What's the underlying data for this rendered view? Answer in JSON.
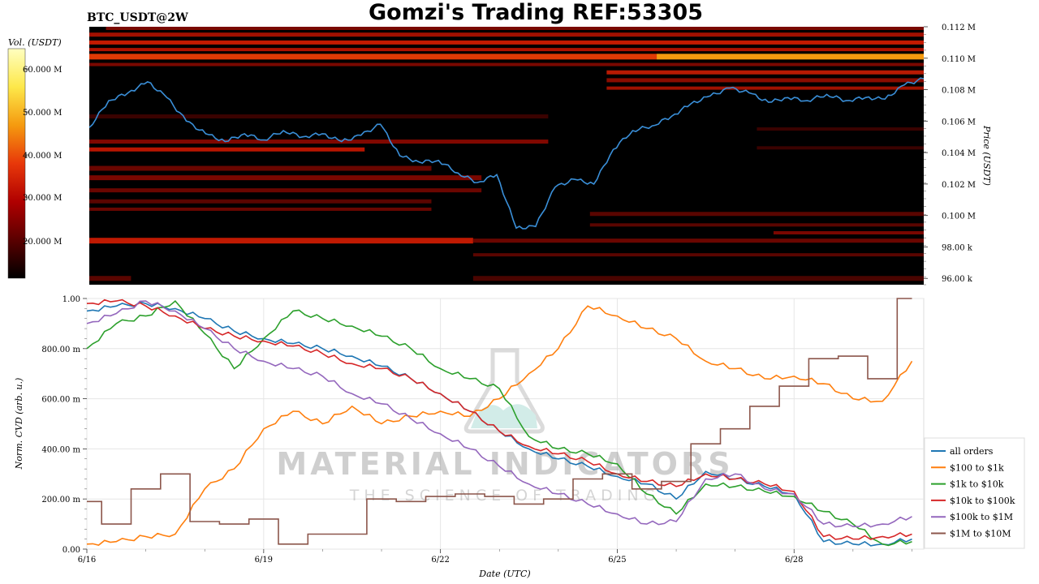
{
  "header": {
    "pair": "BTC_USDT@2W",
    "title": "Gomzi's Trading REF:53305"
  },
  "colorbar": {
    "label": "Vol. (USDT)",
    "ticks": [
      "60.000 M",
      "50.000 M",
      "40.000 M",
      "30.000 M",
      "20.000 M"
    ],
    "colors": [
      "#000000",
      "#5a0000",
      "#b00000",
      "#e8380a",
      "#f59a0f",
      "#fde84a",
      "#ffffc0"
    ]
  },
  "watermark": {
    "text1": "MATERIAL INDICATORS",
    "text2": "THE SCIENCE OF TRADING"
  },
  "chart_data": [
    {
      "type": "heatmap",
      "description_series": "Order book liquidity heatmap with BTC price line",
      "ylabel": "Price (USDT)",
      "y_ticks": [
        "0.112 M",
        "0.110 M",
        "0.108 M",
        "0.106 M",
        "0.104 M",
        "0.102 M",
        "0.100 M",
        "98.00 k",
        "96.00 k"
      ],
      "ylim": [
        95000,
        112000
      ],
      "series": [
        {
          "name": "price",
          "color": "#3a8fd8",
          "x": [
            "6/16",
            "6/16",
            "6/16",
            "6/17",
            "6/17",
            "6/17",
            "6/18",
            "6/18",
            "6/18",
            "6/19",
            "6/19",
            "6/19",
            "6/20",
            "6/20",
            "6/20",
            "6/21",
            "6/21",
            "6/21",
            "6/22",
            "6/22",
            "6/22",
            "6/22",
            "6/23",
            "6/23",
            "6/23",
            "6/24",
            "6/24",
            "6/24",
            "6/25",
            "6/25",
            "6/25",
            "6/26",
            "6/26",
            "6/26",
            "6/27",
            "6/27",
            "6/27",
            "6/28",
            "6/28",
            "6/28",
            "6/29",
            "6/29",
            "6/29",
            "6/30"
          ],
          "values": [
            105600,
            107300,
            107800,
            108500,
            107500,
            106000,
            105200,
            104700,
            105200,
            104800,
            105400,
            105000,
            105200,
            104700,
            105100,
            105800,
            103800,
            103400,
            103500,
            102700,
            102100,
            102600,
            99200,
            99300,
            101800,
            102300,
            102000,
            104200,
            105400,
            105700,
            106300,
            107100,
            107600,
            108100,
            107800,
            107200,
            107500,
            107300,
            107700,
            107300,
            107500,
            107400,
            108300,
            108700
          ]
        }
      ]
    },
    {
      "type": "line",
      "xlabel": "Date (UTC)",
      "ylabel": "Norm. CVD (arb. u.)",
      "x_ticks": [
        "6/16",
        "6/19",
        "6/22",
        "6/25",
        "6/28"
      ],
      "y_ticks": [
        "0.00",
        "200.00 m",
        "400.00 m",
        "600.00 m",
        "800.00 m",
        "1.00"
      ],
      "ylim": [
        0,
        1
      ],
      "legend_position": "right",
      "x_days": [
        0,
        0.5,
        1,
        1.5,
        2,
        2.5,
        3,
        3.5,
        4,
        4.5,
        5,
        5.5,
        6,
        6.5,
        7,
        7.5,
        8,
        8.5,
        9,
        9.5,
        10,
        10.5,
        11,
        11.5,
        12,
        12.5,
        13,
        13.5,
        14
      ],
      "series": [
        {
          "name": "all orders",
          "color": "#1f77b4",
          "values": [
            0.95,
            0.97,
            0.98,
            0.96,
            0.92,
            0.87,
            0.84,
            0.82,
            0.8,
            0.77,
            0.73,
            0.68,
            0.62,
            0.55,
            0.47,
            0.4,
            0.36,
            0.33,
            0.29,
            0.26,
            0.2,
            0.31,
            0.28,
            0.25,
            0.22,
            0.03,
            0.02,
            0.02,
            0.04
          ]
        },
        {
          "name": "$100 to $1k",
          "color": "#ff7f0e",
          "values": [
            0.02,
            0.03,
            0.05,
            0.06,
            0.24,
            0.32,
            0.48,
            0.55,
            0.5,
            0.57,
            0.5,
            0.53,
            0.55,
            0.53,
            0.6,
            0.7,
            0.8,
            0.97,
            0.93,
            0.88,
            0.84,
            0.75,
            0.72,
            0.68,
            0.69,
            0.66,
            0.6,
            0.59,
            0.75
          ]
        },
        {
          "name": "$1k to $10k",
          "color": "#2ca02c",
          "values": [
            0.8,
            0.9,
            0.93,
            0.99,
            0.86,
            0.72,
            0.84,
            0.95,
            0.92,
            0.89,
            0.85,
            0.8,
            0.72,
            0.68,
            0.64,
            0.45,
            0.4,
            0.38,
            0.34,
            0.22,
            0.14,
            0.26,
            0.25,
            0.23,
            0.21,
            0.15,
            0.1,
            0.02,
            0.03
          ]
        },
        {
          "name": "$10k to $100k",
          "color": "#d62728",
          "values": [
            0.98,
            0.99,
            0.97,
            0.93,
            0.88,
            0.85,
            0.83,
            0.81,
            0.78,
            0.74,
            0.72,
            0.68,
            0.62,
            0.55,
            0.47,
            0.41,
            0.38,
            0.35,
            0.3,
            0.27,
            0.25,
            0.3,
            0.28,
            0.26,
            0.23,
            0.05,
            0.04,
            0.05,
            0.06
          ]
        },
        {
          "name": "$100k to $1M",
          "color": "#9467bd",
          "values": [
            0.9,
            0.94,
            0.99,
            0.95,
            0.88,
            0.8,
            0.75,
            0.72,
            0.69,
            0.62,
            0.58,
            0.52,
            0.46,
            0.4,
            0.33,
            0.26,
            0.22,
            0.18,
            0.14,
            0.1,
            0.11,
            0.28,
            0.3,
            0.24,
            0.22,
            0.1,
            0.09,
            0.1,
            0.13
          ]
        },
        {
          "name": "$1M to $10M",
          "color": "#8c564b",
          "values": [
            0.19,
            0.1,
            0.24,
            0.3,
            0.11,
            0.1,
            0.12,
            0.02,
            0.06,
            0.06,
            0.2,
            0.19,
            0.21,
            0.22,
            0.21,
            0.18,
            0.2,
            0.28,
            0.3,
            0.24,
            0.27,
            0.42,
            0.48,
            0.57,
            0.65,
            0.76,
            0.77,
            0.68,
            1.0
          ]
        }
      ]
    }
  ]
}
